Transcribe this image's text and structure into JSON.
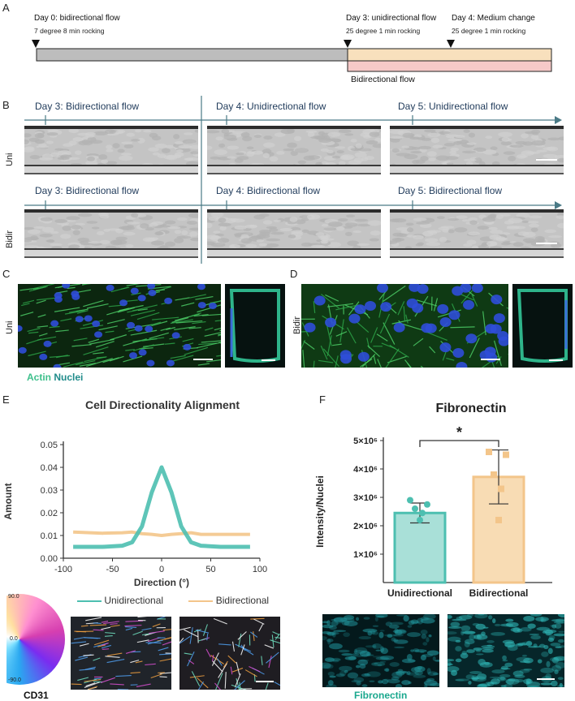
{
  "panels": {
    "A": "A",
    "B": "B",
    "C": "C",
    "D": "D",
    "E": "E",
    "F": "F"
  },
  "timeline": {
    "day0_title": "Day 0: bidirectional flow",
    "day0_sub": "7 degree  8 min rocking",
    "day3_title": "Day 3: unidirectional flow",
    "day3_sub": "25 degree  1 min rocking",
    "day4_title": "Day 4: Medium change",
    "day4_sub": "25 degree  1 min rocking",
    "bidir_label": "Bidirectional flow"
  },
  "panel_b": {
    "uni_row": "Uni",
    "bidir_row": "Bidir",
    "uni_labels": [
      "Day 3: Bidirectional flow",
      "Day 4: Unidirectional flow",
      "Day 5: Unidirectional flow"
    ],
    "bidir_labels": [
      "Day 3: Bidirectional flow",
      "Day 4: Bidirectional flow",
      "Day 5: Bidirectional flow"
    ]
  },
  "panel_c": {
    "row": "Uni",
    "stain_actin": "Actin",
    "stain_nuclei": "Nuclei"
  },
  "panel_d": {
    "row": "Bidir"
  },
  "panel_e": {
    "legend_uni": "Unidirectional",
    "legend_bidir": "Bidirectional",
    "wheel_ticks": [
      "90.0",
      "0.0",
      "-90.0"
    ],
    "cd31": "CD31"
  },
  "panel_f": {
    "fibronectin": "Fibronectin"
  },
  "colors": {
    "uni": "#4dbfb0",
    "bidir": "#f3c58a",
    "accent": "#1aa88e"
  },
  "chart_data": [
    {
      "type": "line",
      "title": "Cell Directionality Alignment",
      "xlabel": "Direction (°)",
      "ylabel": "Amount",
      "xlim": [
        -90,
        90
      ],
      "ylim": [
        0,
        0.05
      ],
      "xticks": [
        "-100",
        "-50",
        "0",
        "50",
        "100"
      ],
      "yticks": [
        "0.00",
        "0.01",
        "0.02",
        "0.03",
        "0.04",
        "0.05"
      ],
      "series": [
        {
          "name": "Unidirectional",
          "x": [
            -90,
            -60,
            -40,
            -30,
            -20,
            -10,
            0,
            10,
            20,
            30,
            40,
            60,
            90
          ],
          "y": [
            0.005,
            0.005,
            0.0055,
            0.007,
            0.014,
            0.029,
            0.04,
            0.029,
            0.014,
            0.007,
            0.0055,
            0.005,
            0.005
          ]
        },
        {
          "name": "Bidirectional",
          "x": [
            -90,
            -60,
            -40,
            -30,
            -20,
            -10,
            0,
            10,
            20,
            30,
            40,
            60,
            90
          ],
          "y": [
            0.0115,
            0.011,
            0.0112,
            0.0115,
            0.0108,
            0.0105,
            0.01,
            0.0105,
            0.0108,
            0.0112,
            0.0105,
            0.0105,
            0.0105
          ]
        }
      ],
      "legend": "bottom"
    },
    {
      "type": "bar",
      "title": "Fibronectin",
      "xlabel": "",
      "ylabel": "Intensity/Nuclei",
      "ylim": [
        0,
        5000000
      ],
      "yticks": [
        "1×10⁶",
        "2×10⁶",
        "3×10⁶",
        "4×10⁶",
        "5×10⁶"
      ],
      "categories": [
        "Unidirectional",
        "Bidirectional"
      ],
      "values": [
        2450000,
        3720000
      ],
      "errors": [
        350000,
        950000
      ],
      "points": [
        [
          2200000,
          2450000,
          2600000,
          2750000,
          2900000
        ],
        [
          2200000,
          3300000,
          3800000,
          4500000,
          4600000
        ]
      ],
      "significance": "*"
    }
  ]
}
